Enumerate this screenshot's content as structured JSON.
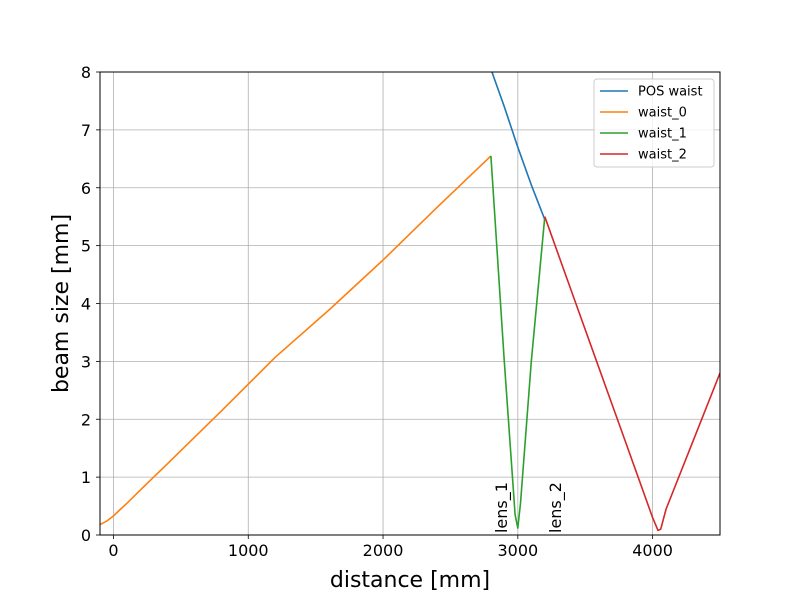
{
  "chart_data": {
    "type": "line",
    "xlabel": "distance [mm]",
    "ylabel": "beam size [mm]",
    "xlim": [
      -100,
      4500
    ],
    "ylim": [
      0,
      8
    ],
    "x_ticks": [
      0,
      1000,
      2000,
      3000,
      4000
    ],
    "y_ticks": [
      0,
      1,
      2,
      3,
      4,
      5,
      6,
      7,
      8
    ],
    "x_tick_labels": [
      "0",
      "1000",
      "2000",
      "3000",
      "4000"
    ],
    "y_tick_labels": [
      "0",
      "1",
      "2",
      "3",
      "4",
      "5",
      "6",
      "7",
      "8"
    ],
    "grid": true,
    "legend_position": "top-right",
    "series": [
      {
        "name": "POS waist",
        "color": "#1f77b4",
        "x": [
          2800,
          2900,
          3000,
          3100,
          3200
        ],
        "y": [
          8.05,
          7.4,
          6.7,
          6.05,
          5.45
        ]
      },
      {
        "name": "waist_0",
        "color": "#ff7f0e",
        "x": [
          -100,
          -50,
          0,
          50,
          100,
          200,
          400,
          800,
          1200,
          1600,
          2000,
          2400,
          2800
        ],
        "y": [
          0.18,
          0.24,
          0.33,
          0.44,
          0.55,
          0.78,
          1.23,
          2.14,
          3.07,
          3.89,
          4.75,
          5.66,
          6.55
        ]
      },
      {
        "name": "waist_1",
        "color": "#2ca02c",
        "x": [
          2800,
          2900,
          2980,
          3000,
          3020,
          3100,
          3200
        ],
        "y": [
          6.55,
          3.0,
          0.35,
          0.12,
          0.55,
          3.0,
          5.5
        ]
      },
      {
        "name": "waist_2",
        "color": "#d62728",
        "x": [
          3200,
          3400,
          3600,
          3800,
          4000,
          4040,
          4060,
          4100,
          4300,
          4500
        ],
        "y": [
          5.5,
          4.2,
          2.9,
          1.6,
          0.3,
          0.08,
          0.1,
          0.45,
          1.62,
          2.8
        ]
      }
    ],
    "annotations": [
      {
        "text": "lens_1",
        "x": 2800,
        "y": 0
      },
      {
        "text": "lens_2",
        "x": 3200,
        "y": 0
      }
    ]
  }
}
